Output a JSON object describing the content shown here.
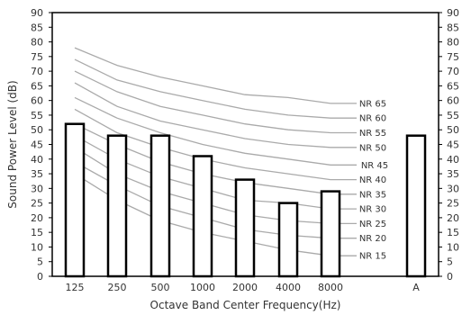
{
  "chart_data": {
    "type": "bar",
    "title": "",
    "xlabel": "Octave Band Center Frequency(Hz)",
    "ylabel": "Sound Power Level (dB)",
    "ylim": [
      0,
      90
    ],
    "yticks": [
      0,
      5,
      10,
      15,
      20,
      25,
      30,
      35,
      40,
      45,
      50,
      55,
      60,
      65,
      70,
      75,
      80,
      85,
      90
    ],
    "categories": [
      "125",
      "250",
      "500",
      "1000",
      "2000",
      "4000",
      "8000",
      "A"
    ],
    "values": [
      52,
      48,
      48,
      41,
      33,
      25,
      29,
      48
    ],
    "grid": false,
    "nr_curves": [
      {
        "name": "NR 65",
        "values": [
          78,
          72,
          68,
          65,
          62,
          61,
          59
        ]
      },
      {
        "name": "NR 60",
        "values": [
          74,
          67,
          63,
          60,
          57,
          55,
          54
        ]
      },
      {
        "name": "NR 55",
        "values": [
          70,
          63,
          58,
          55,
          52,
          50,
          49
        ]
      },
      {
        "name": "NR 50",
        "values": [
          66,
          58,
          53,
          50,
          47,
          45,
          44
        ]
      },
      {
        "name": "NR 45",
        "values": [
          61,
          54,
          49,
          45,
          42,
          40,
          38
        ]
      },
      {
        "name": "NR 40",
        "values": [
          57,
          49,
          44,
          40,
          37,
          35,
          33
        ]
      },
      {
        "name": "NR 35",
        "values": [
          52,
          45,
          39,
          35,
          32,
          30,
          28
        ]
      },
      {
        "name": "NR 30",
        "values": [
          48,
          40,
          34,
          30,
          26,
          25,
          23
        ]
      },
      {
        "name": "NR 25",
        "values": [
          44,
          35,
          29,
          25,
          21,
          19,
          18
        ]
      },
      {
        "name": "NR 20",
        "values": [
          39,
          31,
          24,
          20,
          16,
          14,
          13
        ]
      },
      {
        "name": "NR 15",
        "values": [
          35,
          26,
          19,
          15,
          12,
          9,
          7
        ]
      }
    ],
    "colors": {
      "bar_fill": "#ffffff",
      "bar_stroke": "#000000",
      "curve": "#aaaaaa",
      "axis": "#000000"
    }
  }
}
